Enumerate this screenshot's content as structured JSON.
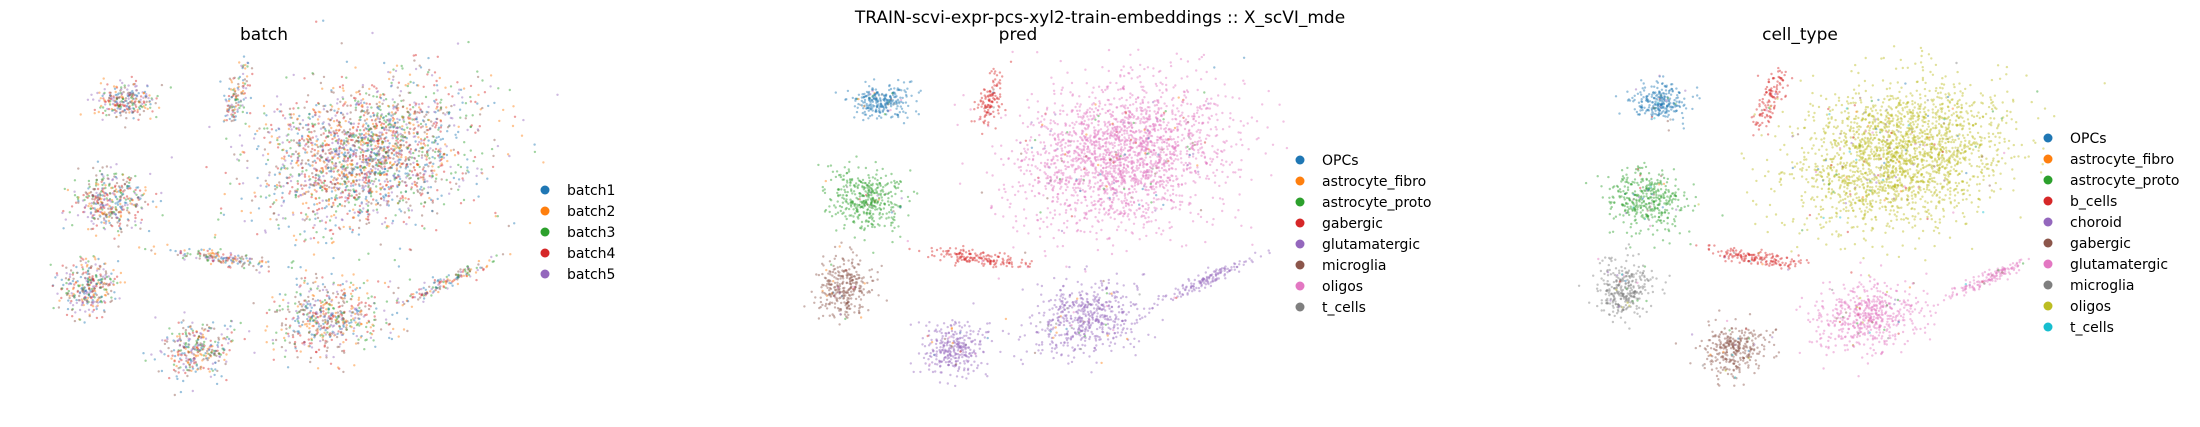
{
  "figure_title": "TRAIN-scvi-expr-pcs-xyl2-train-embeddings :: X_scVI_mde",
  "chart_data": [
    {
      "type": "scatter",
      "title": "batch",
      "axes_visible": false,
      "legend": {
        "placement": "right",
        "entries": [
          {
            "label": "batch1",
            "color": "#1f77b4"
          },
          {
            "label": "batch2",
            "color": "#ff7f0e"
          },
          {
            "label": "batch3",
            "color": "#2ca02c"
          },
          {
            "label": "batch4",
            "color": "#d62728"
          },
          {
            "label": "batch5",
            "color": "#9467bd"
          }
        ]
      }
    },
    {
      "type": "scatter",
      "title": "pred",
      "axes_visible": false,
      "legend": {
        "placement": "right",
        "entries": [
          {
            "label": "OPCs",
            "color": "#1f77b4"
          },
          {
            "label": "astrocyte_fibro",
            "color": "#ff7f0e"
          },
          {
            "label": "astrocyte_proto",
            "color": "#2ca02c"
          },
          {
            "label": "gabergic",
            "color": "#d62728"
          },
          {
            "label": "glutamatergic",
            "color": "#9467bd"
          },
          {
            "label": "microglia",
            "color": "#8c564b"
          },
          {
            "label": "oligos",
            "color": "#e377c2"
          },
          {
            "label": "t_cells",
            "color": "#7f7f7f"
          }
        ]
      }
    },
    {
      "type": "scatter",
      "title": "cell_type",
      "axes_visible": false,
      "legend": {
        "placement": "right",
        "entries": [
          {
            "label": "OPCs",
            "color": "#1f77b4"
          },
          {
            "label": "astrocyte_fibro",
            "color": "#ff7f0e"
          },
          {
            "label": "astrocyte_proto",
            "color": "#2ca02c"
          },
          {
            "label": "b_cells",
            "color": "#d62728"
          },
          {
            "label": "choroid",
            "color": "#9467bd"
          },
          {
            "label": "gabergic",
            "color": "#8c564b"
          },
          {
            "label": "glutamatergic",
            "color": "#e377c2"
          },
          {
            "label": "microglia",
            "color": "#7f7f7f"
          },
          {
            "label": "oligos",
            "color": "#bcbd22"
          },
          {
            "label": "t_cells",
            "color": "#17becf"
          }
        ]
      }
    }
  ]
}
